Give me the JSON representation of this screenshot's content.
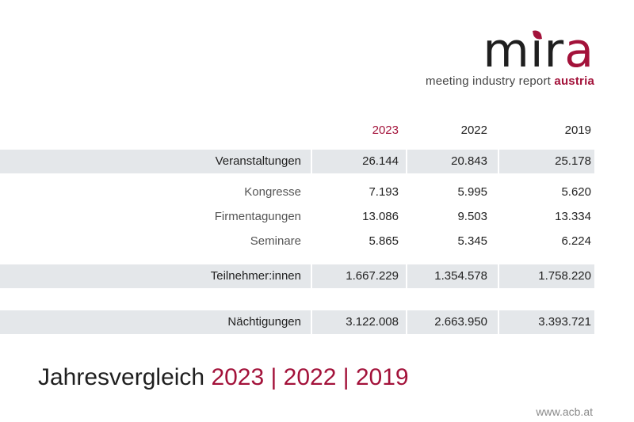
{
  "logo": {
    "word_dark": "m",
    "word_i": "ı",
    "word_r": "r",
    "word_accent": "a",
    "tagline_main": "meeting industry report ",
    "tagline_accent": "austria"
  },
  "table": {
    "years": [
      "2023",
      "2022",
      "2019"
    ],
    "rows": [
      {
        "label": "Veranstaltungen",
        "values": [
          "26.144",
          "20.843",
          "25.178"
        ]
      },
      {
        "label": "Kongresse",
        "values": [
          "7.193",
          "5.995",
          "5.620"
        ]
      },
      {
        "label": "Firmentagungen",
        "values": [
          "13.086",
          "9.503",
          "13.334"
        ]
      },
      {
        "label": "Seminare",
        "values": [
          "5.865",
          "5.345",
          "6.224"
        ]
      },
      {
        "label": "Teilnehmer:innen",
        "values": [
          "1.667.229",
          "1.354.578",
          "1.758.220"
        ]
      },
      {
        "label": "Nächtigungen",
        "values": [
          "3.122.008",
          "2.663.950",
          "3.393.721"
        ]
      }
    ]
  },
  "title": {
    "main": "Jahresvergleich ",
    "accent": "2023 | 2022 | 2019"
  },
  "footer": {
    "url": "www.acb.at"
  },
  "colors": {
    "accent": "#a3123a",
    "band": "#e4e7ea",
    "text": "#222222"
  }
}
